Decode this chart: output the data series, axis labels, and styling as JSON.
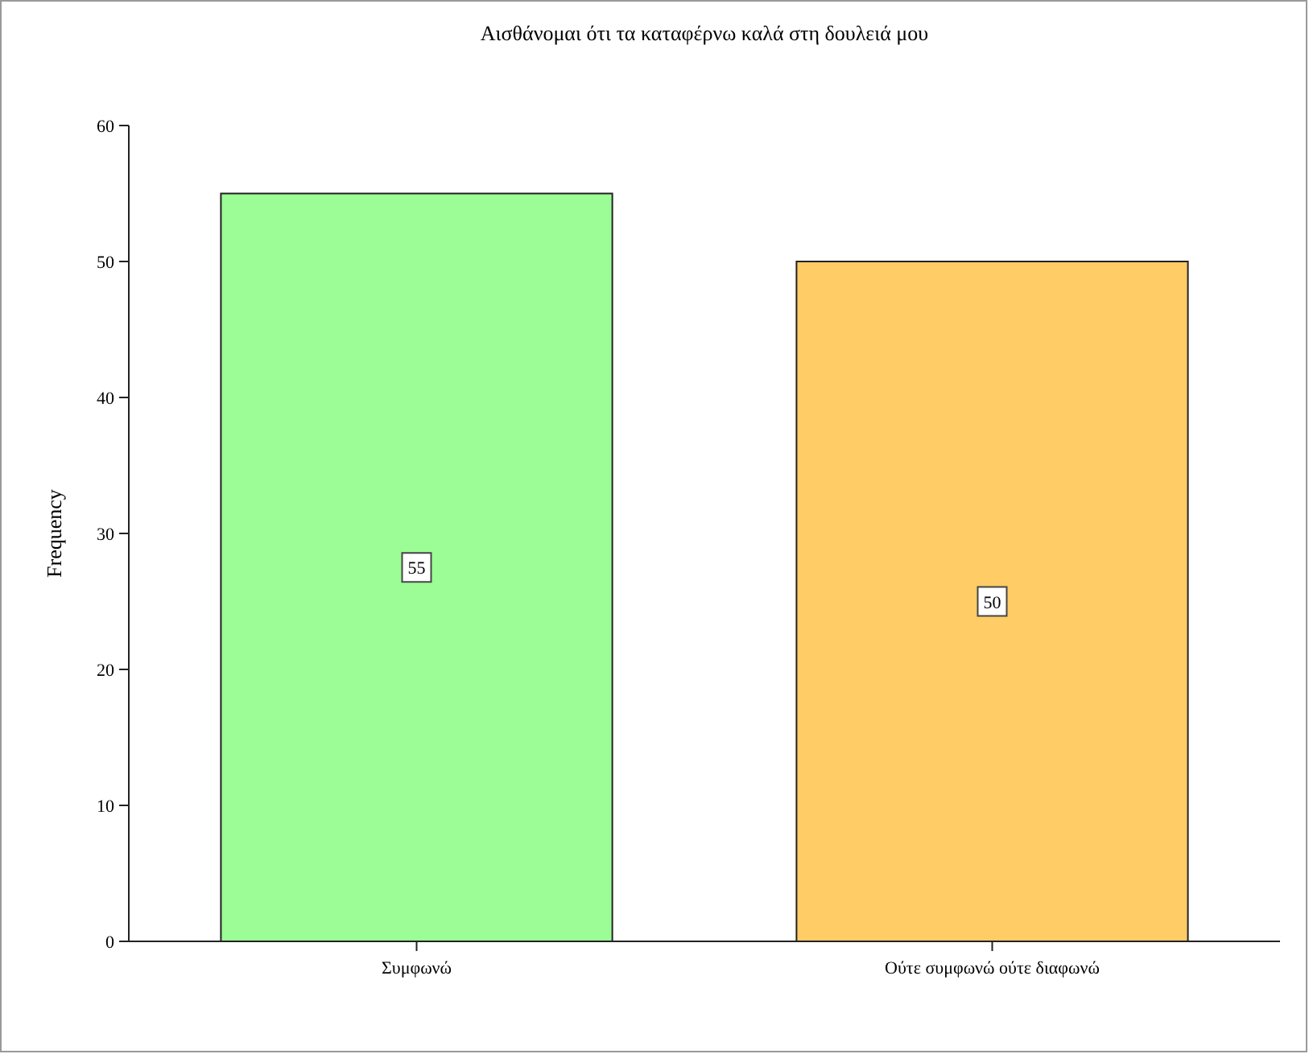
{
  "chart_data": {
    "type": "bar",
    "title": "Αισθάνομαι ότι τα καταφέρνω καλά στη δουλειά μου",
    "ylabel": "Frequency",
    "categories": [
      "Συμφωνώ",
      "Ούτε συμφωνώ ούτε διαφωνώ"
    ],
    "values": [
      55,
      50
    ],
    "colors": [
      "#9cfc96",
      "#ffcc66"
    ],
    "ylim": [
      0,
      60
    ],
    "yticks": [
      0,
      10,
      20,
      30,
      40,
      50,
      60
    ],
    "data_labels": true,
    "grid": false
  }
}
